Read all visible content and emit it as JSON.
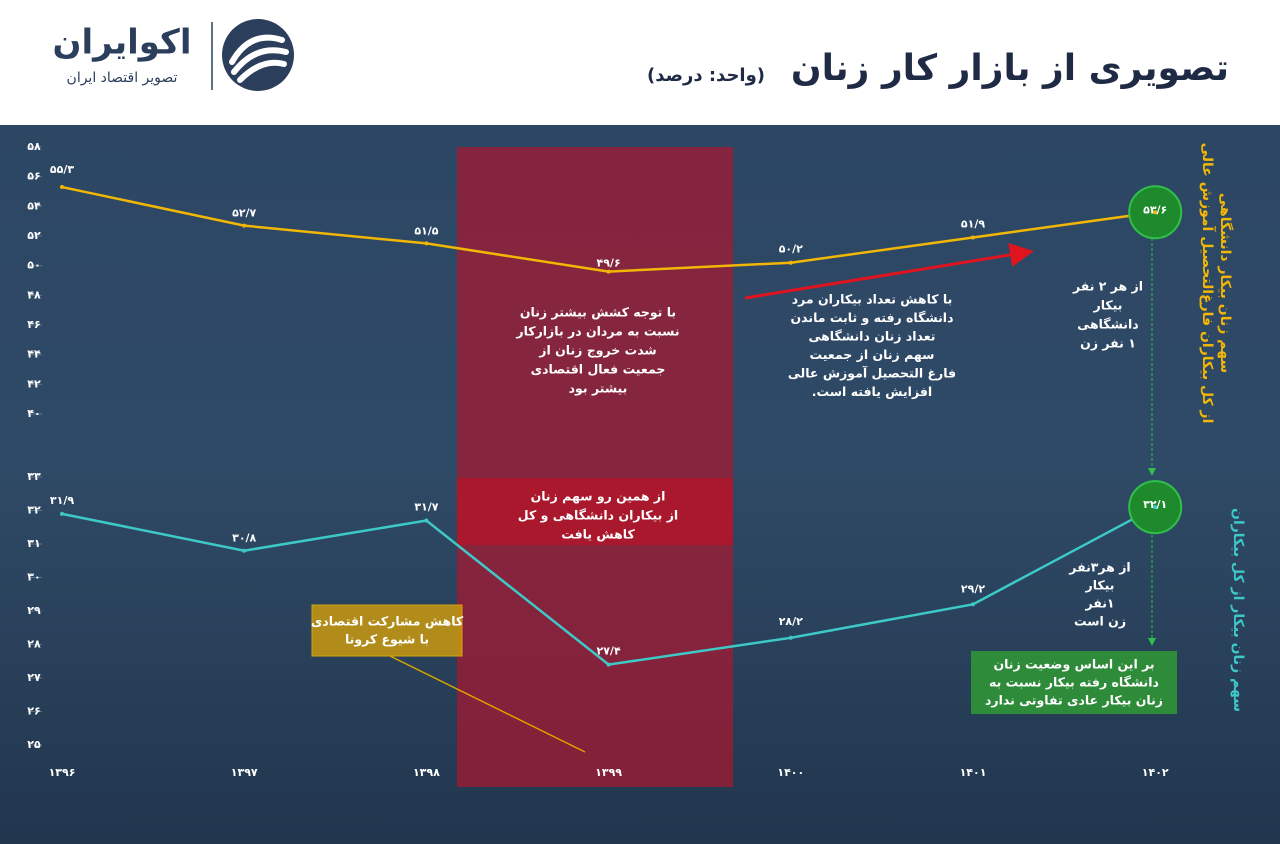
{
  "title": "تصویری از بازار کار زنان",
  "subtitle": "(واحد: درصد)",
  "logo": {
    "name": "اکوایران",
    "tagline": "تصویر اقتصاد ایران"
  },
  "chart_data": [
    {
      "type": "line",
      "ylabel": [
        "سهم زنان بیکار دانشگاهی",
        "از کل بیکاران فارغ‌التحصیل آموزش عالی"
      ],
      "values": [
        55.3,
        52.7,
        51.5,
        49.6,
        50.2,
        51.9,
        53.6
      ],
      "value_labels": [
        "۵۵/۳",
        "۵۲/۷",
        "۵۱/۵",
        "۴۹/۶",
        "۵۰/۲",
        "۵۱/۹",
        "۵۳/۶"
      ],
      "color": "#f2b705",
      "ylim": [
        40,
        58
      ],
      "yticks": [
        {
          "value": 58,
          "label": "۵۸"
        },
        {
          "value": 56,
          "label": "۵۶"
        },
        {
          "value": 54,
          "label": "۵۴"
        },
        {
          "value": 52,
          "label": "۵۲"
        },
        {
          "value": 50,
          "label": "۵۰"
        },
        {
          "value": 48,
          "label": "۴۸"
        },
        {
          "value": 46,
          "label": "۴۶"
        },
        {
          "value": 44,
          "label": "۴۴"
        },
        {
          "value": 42,
          "label": "۴۲"
        },
        {
          "value": 40,
          "label": "۴۰"
        }
      ]
    },
    {
      "type": "line",
      "ylabel": [
        "سهم زنان بیکار از کل بیکاران"
      ],
      "categories": [
        "۱۳۹۶",
        "۱۳۹۷",
        "۱۳۹۸",
        "۱۳۹۹",
        "۱۴۰۰",
        "۱۴۰۱",
        "۱۴۰۲"
      ],
      "values": [
        31.9,
        30.8,
        31.7,
        27.4,
        28.2,
        29.2,
        32.1
      ],
      "value_labels": [
        "۳۱/۹",
        "۳۰/۸",
        "۳۱/۷",
        "۲۷/۴",
        "۲۸/۲",
        "۲۹/۲",
        "۳۲/۱"
      ],
      "color": "#3ec9c9",
      "ylim": [
        25,
        33
      ],
      "yticks": [
        {
          "value": 33,
          "label": "۳۳"
        },
        {
          "value": 32,
          "label": "۳۲"
        },
        {
          "value": 31,
          "label": "۳۱"
        },
        {
          "value": 30,
          "label": "۳۰"
        },
        {
          "value": 29,
          "label": "۲۹"
        },
        {
          "value": 28,
          "label": "۲۸"
        },
        {
          "value": 27,
          "label": "۲۷"
        },
        {
          "value": 26,
          "label": "۲۶"
        },
        {
          "value": 25,
          "label": "۲۵"
        }
      ]
    }
  ],
  "annotations": [
    {
      "lines": [
        "با توجه کشش بیشتر زنان",
        "نسبت به مردان در بازارکار",
        "شدت خروج زنان از",
        "جمعیت فعال اقتصادی",
        "بیشتر بود"
      ]
    },
    {
      "lines": [
        "با کاهش تعداد بیکاران مرد",
        "دانشگاه رفته و ثابت ماندن",
        "تعداد زنان دانشگاهی",
        "سهم زنان از جمعیت",
        "فارغ التحصیل آموزش عالی",
        "افزایش یافته است."
      ]
    },
    {
      "lines": [
        "از هر ۲ نفر",
        "بیکار",
        "دانشگاهی",
        "۱ نفر زن"
      ]
    },
    {
      "lines": [
        "از همین رو سهم زنان",
        "از بیکاران دانشگاهی و کل",
        "کاهش یافت"
      ]
    },
    {
      "lines": [
        "کاهش مشارکت اقتصادی",
        "با شیوع کرونا"
      ]
    },
    {
      "lines": [
        "از هر۳نفر",
        "بیکار",
        "۱نفر",
        "زن است"
      ]
    },
    {
      "lines": [
        "بر این اساس وضعیت زنان",
        "دانشگاه رفته بیکار نسبت به",
        "زنان بیکار عادی تفاوتی ندارد"
      ]
    }
  ]
}
